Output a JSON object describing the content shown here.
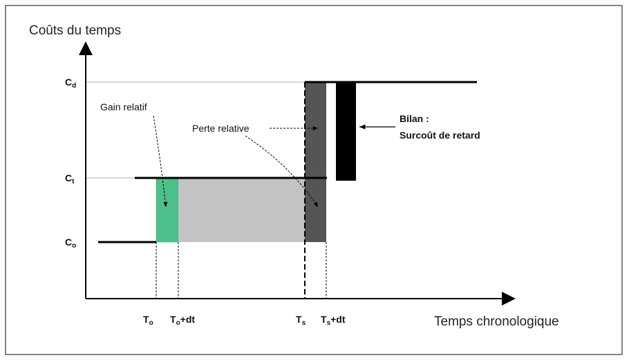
{
  "diagram": {
    "y_axis_label": "Coûts du temps",
    "x_axis_label": "Temps chronologique",
    "levels": [
      {
        "main": "C",
        "sub": "d"
      },
      {
        "main": "C",
        "sub": "t"
      },
      {
        "main": "C",
        "sub": "o"
      }
    ],
    "times": [
      {
        "main": "T",
        "sub": "o",
        "suffix": ""
      },
      {
        "main": "T",
        "sub": "o",
        "suffix": "+dt"
      },
      {
        "main": "T",
        "sub": "s",
        "suffix": ""
      },
      {
        "main": "T",
        "sub": "s",
        "suffix": "+dt"
      }
    ],
    "annotations": {
      "gain": "Gain relatif",
      "loss": "Perte relative",
      "balance_title": "Bilan :",
      "balance_text": "Surcoût de retard"
    }
  }
}
